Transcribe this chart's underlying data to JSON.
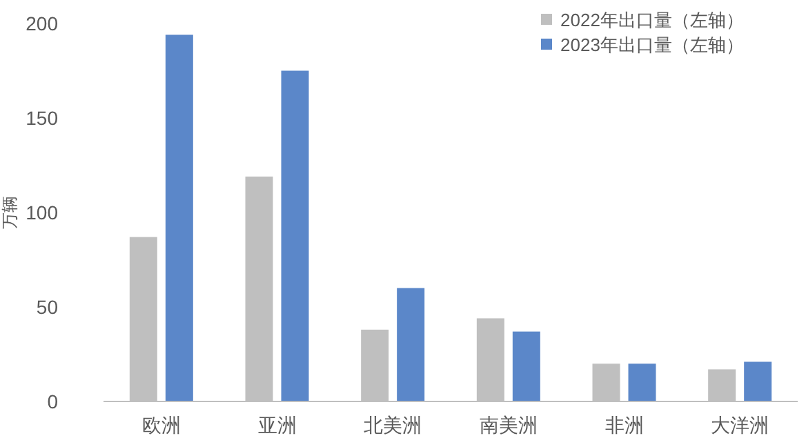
{
  "chart_data": {
    "type": "bar",
    "ylabel": "万辆",
    "categories": [
      "欧洲",
      "亚洲",
      "北美洲",
      "南美洲",
      "非洲",
      "大洋洲"
    ],
    "series": [
      {
        "name": "2022年出口量（左轴）",
        "color": "#bfbfbf",
        "values": [
          87,
          119,
          38,
          44,
          20,
          17
        ]
      },
      {
        "name": "2023年出口量（左轴）",
        "color": "#5b87c9",
        "values": [
          194,
          175,
          60,
          37,
          20,
          21
        ]
      }
    ],
    "ylim": [
      0,
      200
    ],
    "yticks": [
      0,
      50,
      100,
      150,
      200
    ],
    "grid": false,
    "legend": "top right"
  }
}
